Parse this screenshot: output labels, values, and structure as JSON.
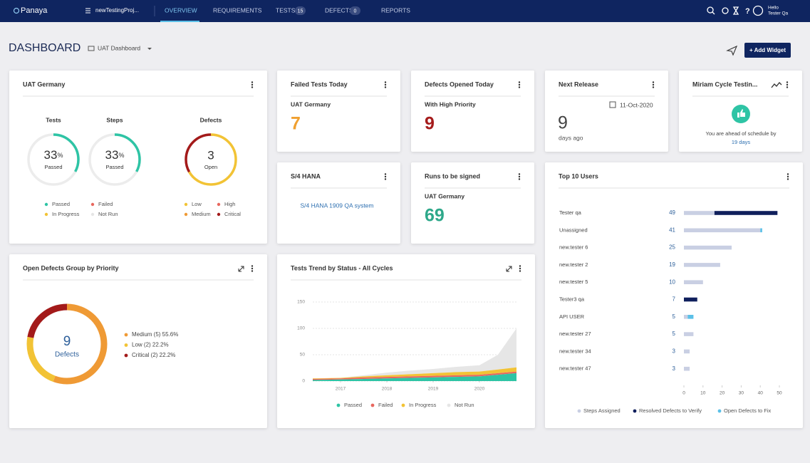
{
  "nav": {
    "brand": "Panaya",
    "project": "newTestingProj...",
    "tabs": [
      "OVERVIEW",
      "REQUIREMENTS",
      "TESTS",
      "DEFECTS",
      "REPORTS"
    ],
    "badges": {
      "tests": 15,
      "defects": 0
    },
    "greeting": "Hello",
    "user": "Tester Qa"
  },
  "header": {
    "title": "DASHBOARD",
    "dashboard": "UAT Dashboard",
    "add_widget": "+ Add Widget"
  },
  "uat": {
    "title": "UAT Germany",
    "gauges": [
      {
        "label": "Tests",
        "value": 33,
        "unit": "%",
        "status": "Passed",
        "color": "#2ec4a5"
      },
      {
        "label": "Steps",
        "value": 33,
        "unit": "%",
        "status": "Passed",
        "color": "#2ec4a5"
      }
    ],
    "defects": {
      "label": "Defects",
      "value": 3,
      "status": "Open",
      "segments": [
        {
          "value": 2,
          "color": "#f2c335"
        },
        {
          "value": 1,
          "color": "#a31a1a"
        }
      ]
    },
    "test_legend": [
      {
        "name": "Passed",
        "color": "#2ec4a5"
      },
      {
        "name": "Failed",
        "color": "#e8685f"
      },
      {
        "name": "In Progress",
        "color": "#f2c335"
      },
      {
        "name": "Not Run",
        "color": "#e6e6e6"
      }
    ],
    "defect_legend": [
      {
        "name": "Low",
        "color": "#f2c335"
      },
      {
        "name": "High",
        "color": "#e8685f"
      },
      {
        "name": "Medium",
        "color": "#ef9a35"
      },
      {
        "name": "Critical",
        "color": "#a31a1a"
      }
    ]
  },
  "failed_today": {
    "title": "Failed Tests Today",
    "subtitle": "UAT Germany",
    "value": 7,
    "color": "#f0a030"
  },
  "defects_today": {
    "title": "Defects Opened Today",
    "subtitle": "With High Priority",
    "value": 9,
    "color": "#a51c1c"
  },
  "next_release": {
    "title": "Next Release",
    "date": "11-Oct-2020",
    "value": 9,
    "caption": "days ago"
  },
  "cycle": {
    "title": "Miriam Cycle Testin...",
    "message": "You are ahead of schedule by",
    "days": "19 days"
  },
  "s4": {
    "title": "S/4 HANA",
    "link": "S/4 HANA 1909 QA system"
  },
  "runs": {
    "title": "Runs to be signed",
    "subtitle": "UAT Germany",
    "value": 69,
    "color": "#2ea88a"
  },
  "open_defects": {
    "title": "Open Defects Group by Priority",
    "total": 9,
    "caption": "Defects",
    "segments": [
      {
        "label": "Medium (5) 55.6%",
        "value": 5,
        "color": "#ef9a35"
      },
      {
        "label": "Low (2) 22.2%",
        "value": 2,
        "color": "#f2c335"
      },
      {
        "label": "Critical (2) 22.2%",
        "value": 2,
        "color": "#a31a1a"
      }
    ]
  },
  "trend": {
    "type": "area",
    "title": "Tests Trend by Status - All Cycles",
    "x": [
      2016.4,
      2017,
      2017.5,
      2018,
      2018.5,
      2019,
      2019.5,
      2020,
      2020.4,
      2020.8
    ],
    "xlim": [
      2016.4,
      2020.8
    ],
    "xticks": [
      2017,
      2018,
      2019,
      2020
    ],
    "ylim": [
      0,
      150
    ],
    "yticks": [
      0,
      50,
      100,
      150
    ],
    "grid": true,
    "stacked": true,
    "series": [
      {
        "name": "Passed",
        "color": "#2ec4a5",
        "values": [
          2,
          3,
          4,
          5,
          6,
          7,
          8,
          9,
          12,
          15
        ]
      },
      {
        "name": "Failed",
        "color": "#e8685f",
        "values": [
          2,
          2,
          3,
          3,
          3,
          3,
          3,
          3,
          3,
          3
        ]
      },
      {
        "name": "In Progress",
        "color": "#f2c335",
        "values": [
          1,
          1,
          2,
          3,
          4,
          5,
          6,
          6,
          7,
          8
        ]
      },
      {
        "name": "Not Run",
        "color": "#e6e6e6",
        "values": [
          0,
          0,
          2,
          5,
          7,
          8,
          10,
          12,
          28,
          74
        ]
      }
    ]
  },
  "top_users": {
    "type": "bar",
    "title": "Top 10 Users",
    "orientation": "horizontal",
    "stacked": true,
    "categories": [
      "Tester qa",
      "Unassigned",
      "new.tester 6",
      "new.tester 2",
      "new.tester 5",
      "Tester3 qa",
      "API USER",
      "new.tester 27",
      "new.tester 34",
      "new.tester 47"
    ],
    "totals": [
      49,
      41,
      25,
      19,
      10,
      7,
      5,
      5,
      3,
      3
    ],
    "xlim": [
      0,
      50
    ],
    "xticks": [
      0,
      10,
      20,
      30,
      40,
      50
    ],
    "series": [
      {
        "name": "Steps Assigned",
        "color": "#c9cfe3",
        "values": [
          16,
          40,
          25,
          19,
          10,
          0,
          2,
          5,
          3,
          3
        ]
      },
      {
        "name": "Resolved Defects to Verify",
        "color": "#0f1f5c",
        "values": [
          33,
          0,
          0,
          0,
          0,
          7,
          0,
          0,
          0,
          0
        ]
      },
      {
        "name": "Open Defects to Fix",
        "color": "#5bc0e8",
        "values": [
          0,
          1,
          0,
          0,
          0,
          0,
          3,
          0,
          0,
          0
        ]
      }
    ]
  }
}
